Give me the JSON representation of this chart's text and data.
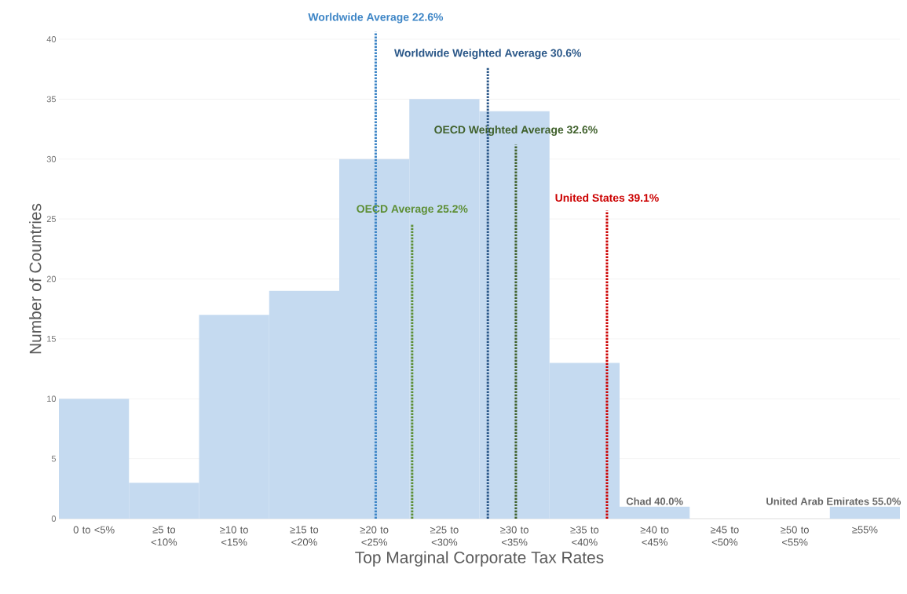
{
  "chart_data": {
    "type": "histogram",
    "xlabel": "Top Marginal Corporate Tax Rates",
    "ylabel": "Number of Countries",
    "bins": [
      0,
      5,
      10,
      15,
      20,
      25,
      30,
      35,
      40,
      45,
      50,
      55,
      60
    ],
    "values": [
      10,
      3,
      17,
      19,
      30,
      35,
      34,
      13,
      1,
      0,
      0,
      1
    ],
    "color": "#c5daf0",
    "xlim": [
      0,
      60
    ],
    "categories": [
      "0 to <5%",
      "≥5 to <10%",
      "≥10 to <15%",
      "≥15 to <20%",
      "≥20 to <25%",
      "≥25 to <30%",
      "≥30 to <35%",
      "≥35 to <40%",
      "≥40 to <45%",
      "≥45 to <50%",
      "≥50 to <55%",
      "≥55%"
    ],
    "ylim": [
      0,
      40
    ],
    "yticks": [
      0,
      5,
      10,
      15,
      20,
      25,
      30,
      35,
      40
    ],
    "grid": "y",
    "ref_lines": [
      {
        "axis": "x",
        "value": 22.6,
        "label": "Worldwide Average 22.6%",
        "color": "#3d85c6",
        "line_style": "dotted"
      },
      {
        "axis": "x",
        "value": 30.6,
        "label": "Worldwide Weighted Average 30.6%",
        "color": "#2a5788",
        "line_style": "dotted"
      },
      {
        "axis": "x",
        "value": 32.6,
        "label": "OECD Weighted Average 32.6%",
        "color": "#40612c",
        "line_style": "dotted"
      },
      {
        "axis": "x",
        "value": 25.2,
        "label": "OECD Average 25.2%",
        "color": "#5e8f36",
        "line_style": "dotted"
      },
      {
        "axis": "x",
        "value": 39.1,
        "label": "United States 39.1%",
        "color": "#cc0000",
        "line_style": "dotted"
      }
    ],
    "annotations": [
      {
        "text": "Chad 40.0%",
        "x": 42.5,
        "y": 1
      },
      {
        "text": "United Arab Emirates 55.0%",
        "x": 57.5,
        "y": 1
      }
    ]
  }
}
